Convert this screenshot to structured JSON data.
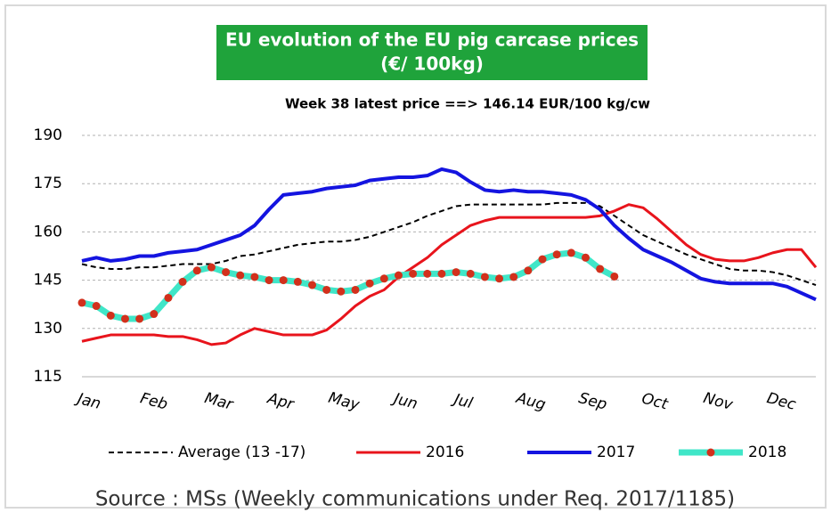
{
  "chart_data": {
    "type": "line",
    "title": [
      "EU evolution of the EU pig carcase prices",
      "(€/ 100kg)"
    ],
    "subtitle": "Week 38 latest price ==> 146.14 EUR/100 kg/cw",
    "source": "Source : MSs (Weekly communications under Req. 2017/1185)",
    "x": [
      1,
      2,
      3,
      4,
      5,
      6,
      7,
      8,
      9,
      10,
      11,
      12,
      13,
      14,
      15,
      16,
      17,
      18,
      19,
      20,
      21,
      22,
      23,
      24,
      25,
      26,
      27,
      28,
      29,
      30,
      31,
      32,
      33,
      34,
      35,
      36,
      37,
      38,
      39,
      40,
      41,
      42,
      43,
      44,
      45,
      46,
      47,
      48,
      49,
      50,
      51,
      52
    ],
    "xlim": [
      1,
      52
    ],
    "xticks": [
      {
        "value": 1.5,
        "label": "Jan"
      },
      {
        "value": 6,
        "label": "Feb"
      },
      {
        "value": 10.5,
        "label": "Mar"
      },
      {
        "value": 14.8,
        "label": "Apr"
      },
      {
        "value": 19.2,
        "label": "May"
      },
      {
        "value": 23.5,
        "label": "Jun"
      },
      {
        "value": 27.5,
        "label": "Jul"
      },
      {
        "value": 32.2,
        "label": "Aug"
      },
      {
        "value": 36.5,
        "label": "Sep"
      },
      {
        "value": 40.8,
        "label": "Oct"
      },
      {
        "value": 45.2,
        "label": "Nov"
      },
      {
        "value": 49.6,
        "label": "Dec"
      }
    ],
    "ylim": [
      115,
      190
    ],
    "yticks": [
      115,
      130,
      145,
      160,
      175,
      190
    ],
    "grid": true,
    "legend": "bottom",
    "series": [
      {
        "name": "Average (13 -17)",
        "color": "#000000",
        "line_style": "dashed",
        "width": 2,
        "values": [
          150,
          149,
          148.5,
          148.5,
          149,
          149,
          149.5,
          150,
          150,
          150,
          151,
          152.5,
          153,
          154,
          155,
          156,
          156.5,
          157,
          157,
          157.5,
          158.5,
          160,
          161.5,
          163,
          165,
          166.5,
          168,
          168.5,
          168.5,
          168.5,
          168.5,
          168.5,
          168.5,
          169,
          169,
          169,
          168,
          165,
          162,
          159,
          157,
          155,
          153,
          151.5,
          150,
          148.5,
          148,
          148,
          147.5,
          146.5,
          145,
          143.5
        ]
      },
      {
        "name": "2016",
        "color": "#e8141c",
        "line_style": "solid",
        "width": 3,
        "values": [
          126,
          127,
          128,
          128,
          128,
          128,
          127.5,
          127.5,
          126.5,
          125,
          125.5,
          128,
          130,
          129,
          128,
          128,
          128,
          129.5,
          133,
          137,
          140,
          142,
          146,
          149,
          152,
          156,
          159,
          162,
          163.5,
          164.5,
          164.5,
          164.5,
          164.5,
          164.5,
          164.5,
          164.5,
          165,
          166.5,
          168.5,
          167.5,
          164,
          160,
          156,
          153,
          151.5,
          151,
          151,
          152,
          153.5,
          154.5,
          154.5,
          149
        ]
      },
      {
        "name": "2017",
        "color": "#1414e0",
        "line_style": "solid",
        "width": 4,
        "values": [
          151,
          152,
          151,
          151.5,
          152.5,
          152.5,
          153.5,
          154,
          154.5,
          156,
          157.5,
          159,
          162,
          167,
          171.5,
          172,
          172.5,
          173.5,
          174,
          174.5,
          176,
          176.5,
          177,
          177,
          177.5,
          179.5,
          178.5,
          175.5,
          173,
          172.5,
          173,
          172.5,
          172.5,
          172,
          171.5,
          170,
          167,
          162,
          158,
          154.5,
          152.5,
          150.5,
          148,
          145.5,
          144.5,
          144,
          144,
          144,
          144,
          143,
          141,
          139
        ]
      },
      {
        "name": "2018",
        "color": "#40e6c8",
        "line_style": "solid",
        "width": 7,
        "markers": true,
        "marker_color": "#d2301c",
        "values": [
          138,
          137,
          134,
          133,
          133,
          134.5,
          139.5,
          144.5,
          148,
          149,
          147.5,
          146.5,
          146,
          145,
          145,
          144.5,
          143.5,
          142,
          141.5,
          142,
          144,
          145.5,
          146.5,
          147,
          147,
          147,
          147.5,
          147,
          146,
          145.5,
          146,
          148,
          151.5,
          153,
          153.5,
          152,
          148.5,
          146.14,
          null,
          null,
          null,
          null,
          null,
          null,
          null,
          null,
          null,
          null,
          null,
          null,
          null,
          null
        ]
      }
    ]
  }
}
